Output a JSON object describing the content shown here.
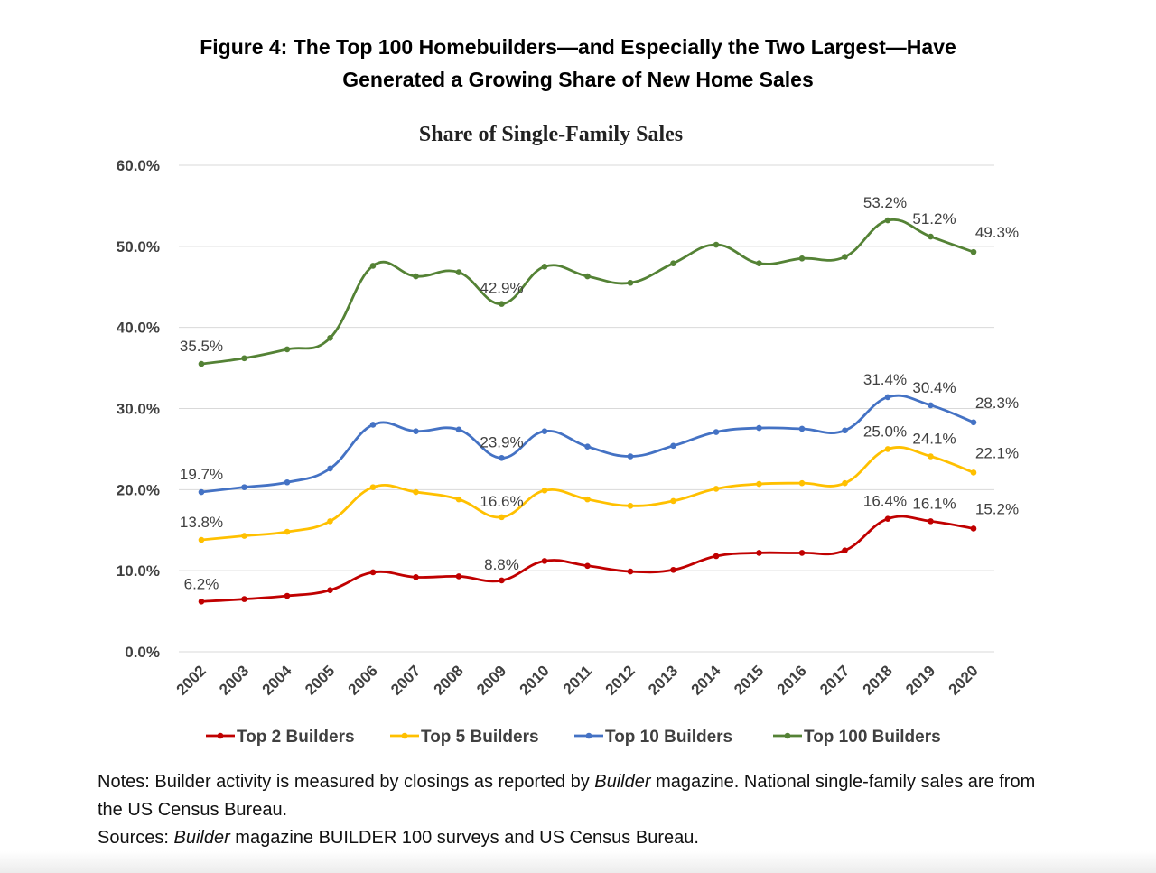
{
  "figure_title_line1": "Figure 4: The Top 100 Homebuilders—and Especially the Two Largest—Have",
  "figure_title_line2": "Generated a Growing Share of New Home Sales",
  "notes": {
    "line1_pre": "Notes: Builder activity is measured by closings as reported by ",
    "line1_italic": "Builder",
    "line1_post": " magazine. National single-family sales are from the US Census Bureau.",
    "line2_pre": "Sources: ",
    "line2_italic": "Builder",
    "line2_post": " magazine BUILDER 100 surveys and US Census Bureau."
  },
  "colors": {
    "top2": "#c00000",
    "top5": "#ffc000",
    "top10": "#4472c4",
    "top100": "#548235",
    "grid": "#d9d9d9",
    "label": "#404040"
  },
  "chart_data": {
    "type": "line",
    "title": "Share of Single-Family Sales",
    "xlabel": "",
    "ylabel": "",
    "ylim": [
      0,
      60
    ],
    "yticks": [
      "0.0%",
      "10.0%",
      "20.0%",
      "30.0%",
      "40.0%",
      "50.0%",
      "60.0%"
    ],
    "grid": true,
    "legend_position": "bottom",
    "categories": [
      "2002",
      "2003",
      "2004",
      "2005",
      "2006",
      "2007",
      "2008",
      "2009",
      "2010",
      "2011",
      "2012",
      "2013",
      "2014",
      "2015",
      "2016",
      "2017",
      "2018",
      "2019",
      "2020"
    ],
    "series": [
      {
        "name": "Top 2 Builders",
        "color_key": "top2",
        "values": [
          6.2,
          6.5,
          6.9,
          7.6,
          9.8,
          9.2,
          9.3,
          8.8,
          11.2,
          10.6,
          9.9,
          10.1,
          11.8,
          12.2,
          12.2,
          12.5,
          16.4,
          16.1,
          15.2
        ],
        "labels": {
          "0": "6.2%",
          "7": "8.8%",
          "16": "16.4%",
          "17": "16.1%",
          "18": "15.2%"
        }
      },
      {
        "name": "Top 5 Builders",
        "color_key": "top5",
        "values": [
          13.8,
          14.3,
          14.8,
          16.1,
          20.3,
          19.7,
          18.8,
          16.6,
          19.9,
          18.8,
          18.0,
          18.6,
          20.1,
          20.7,
          20.8,
          20.8,
          25.0,
          24.1,
          22.1
        ],
        "labels": {
          "0": "13.8%",
          "7": "16.6%",
          "16": "25.0%",
          "17": "24.1%",
          "18": "22.1%"
        }
      },
      {
        "name": "Top 10 Builders",
        "color_key": "top10",
        "values": [
          19.7,
          20.3,
          20.9,
          22.6,
          28.0,
          27.2,
          27.4,
          23.9,
          27.2,
          25.3,
          24.1,
          25.4,
          27.1,
          27.6,
          27.5,
          27.3,
          31.4,
          30.4,
          28.3
        ],
        "labels": {
          "0": "19.7%",
          "7": "23.9%",
          "16": "31.4%",
          "17": "30.4%",
          "18": "28.3%"
        }
      },
      {
        "name": "Top 100 Builders",
        "color_key": "top100",
        "values": [
          35.5,
          36.2,
          37.3,
          38.7,
          47.6,
          46.3,
          46.8,
          42.9,
          47.5,
          46.3,
          45.5,
          47.9,
          50.2,
          47.9,
          48.5,
          48.7,
          53.2,
          51.2,
          49.3
        ],
        "labels": {
          "0": "35.5%",
          "7": "42.9%",
          "16": "53.2%",
          "17": "51.2%",
          "18": "49.3%"
        }
      }
    ]
  }
}
